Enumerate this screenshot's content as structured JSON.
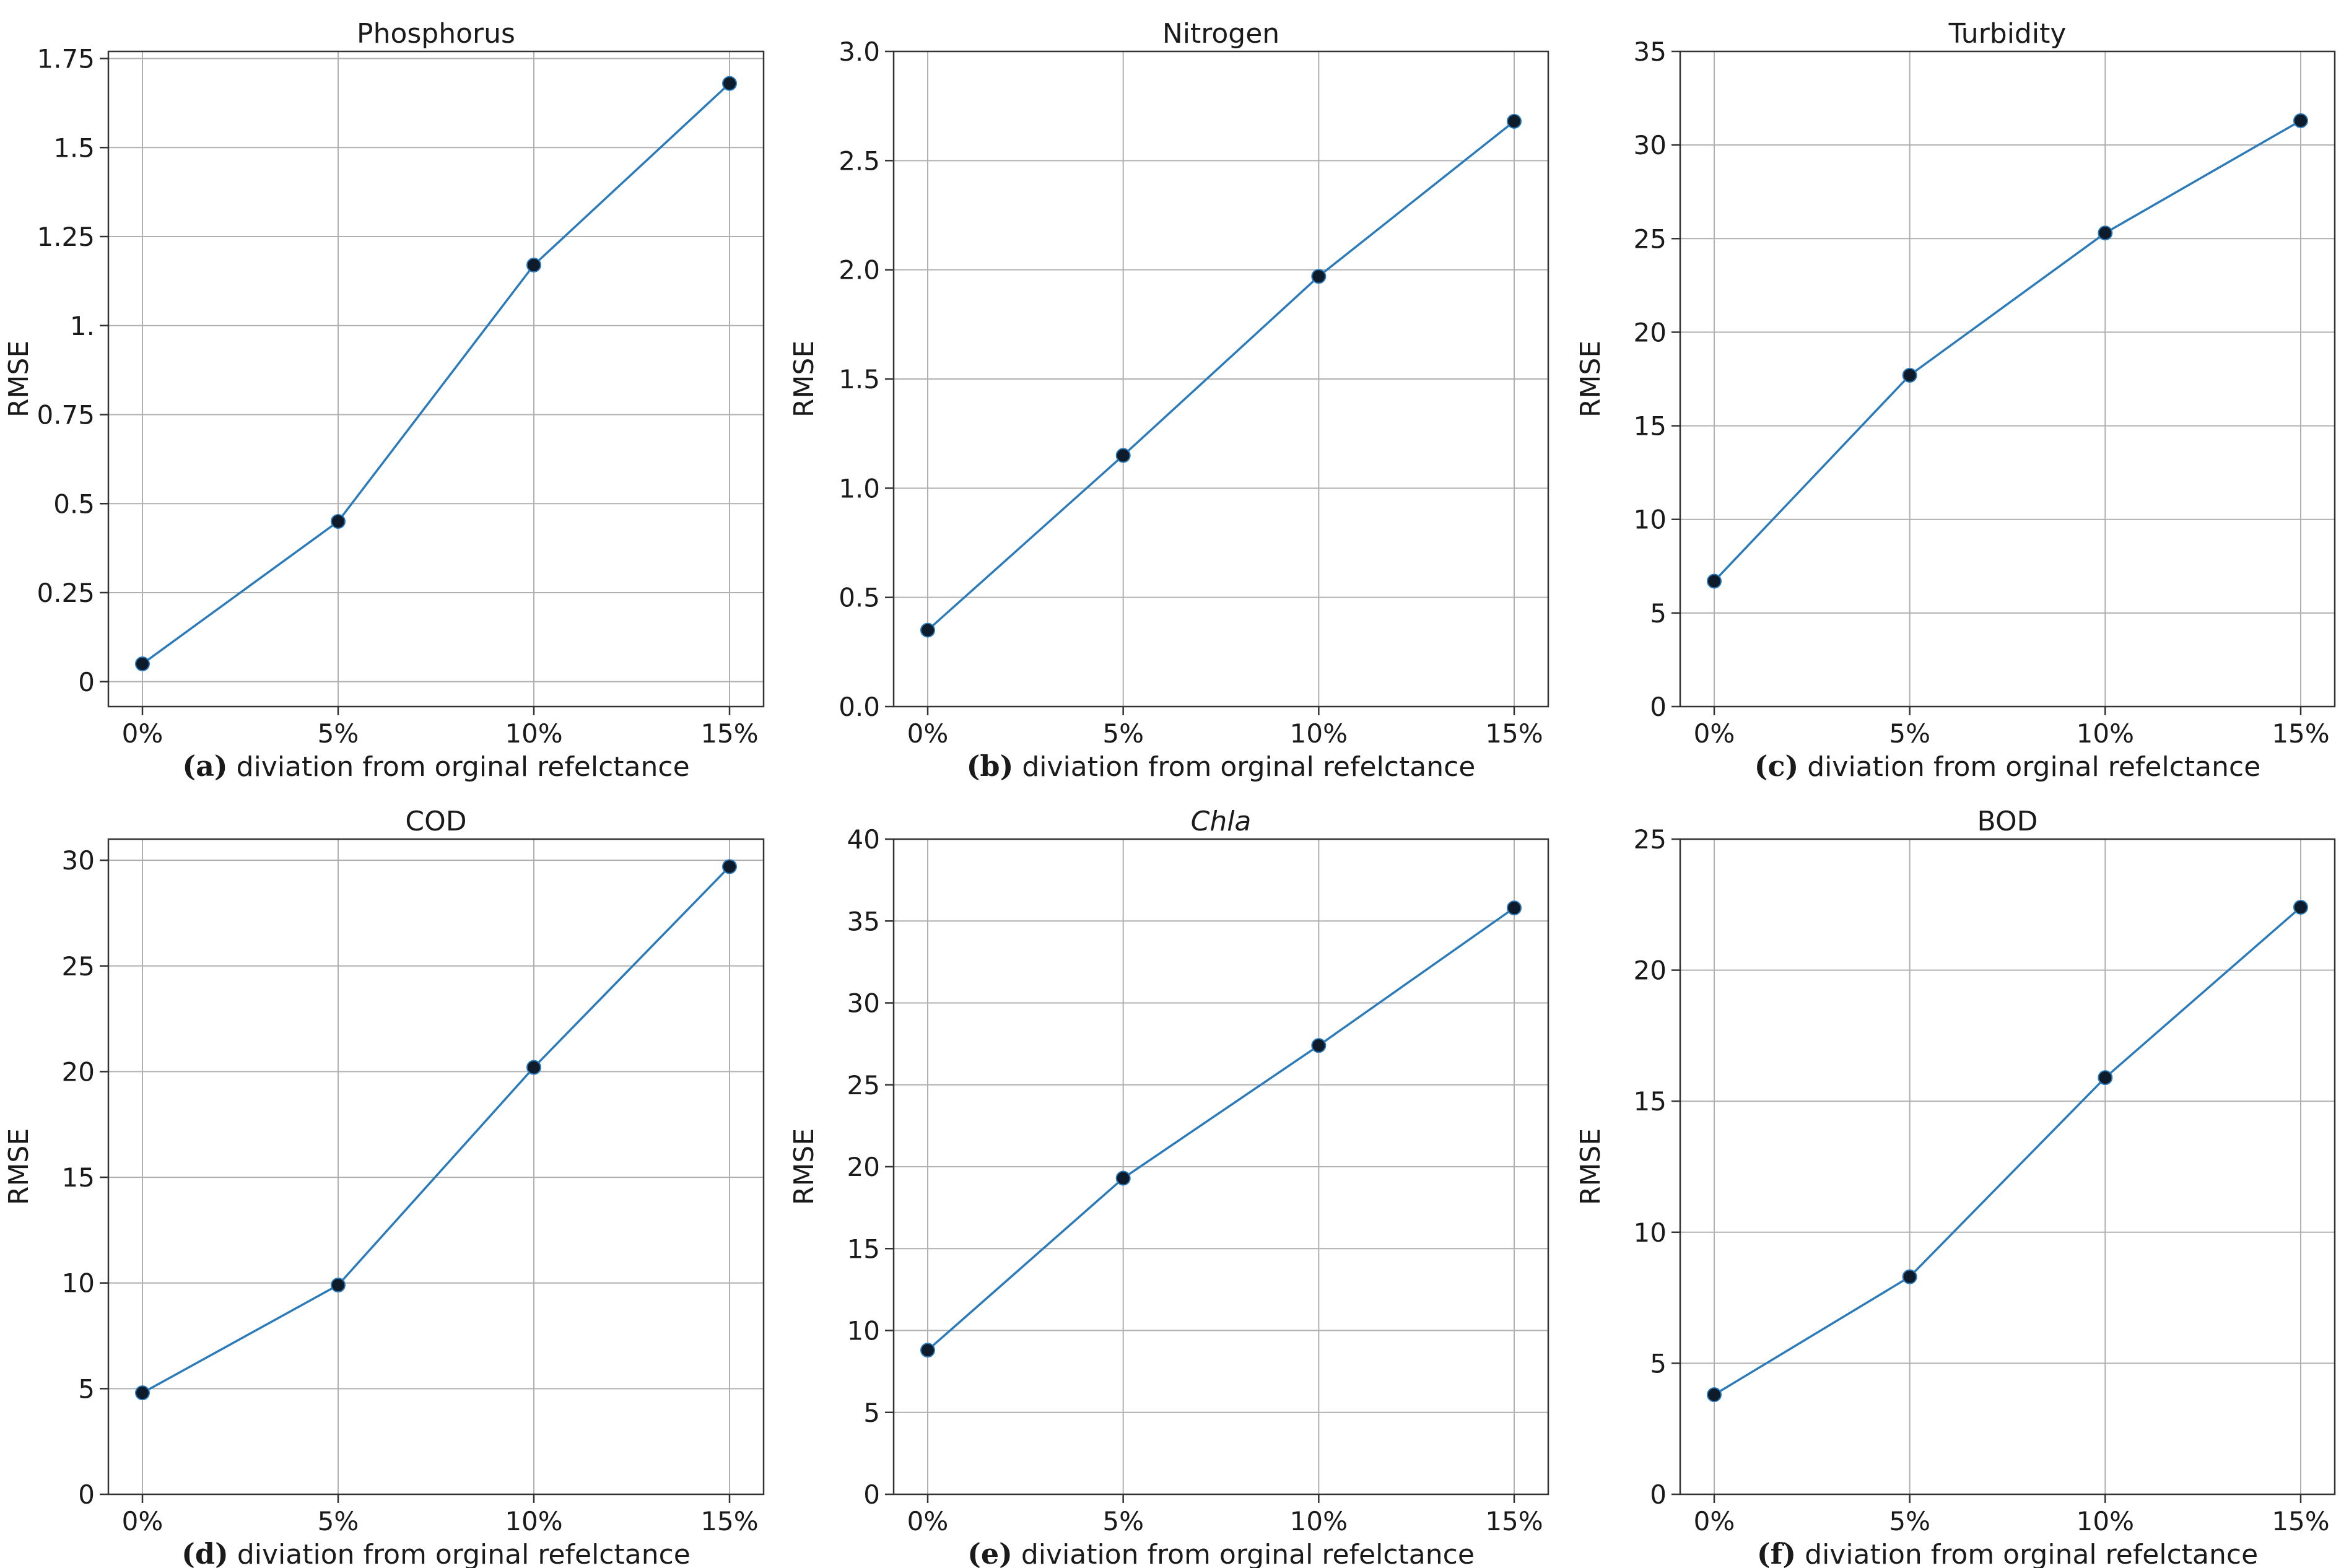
{
  "chart_data": [
    {
      "type": "line",
      "panel": "(a)",
      "title": "Phosphorus",
      "title_italic": false,
      "xlabel": "diviation from orginal refelctance",
      "ylabel": "RMSE",
      "categories": [
        "0%",
        "5%",
        "10%",
        "15%"
      ],
      "values": [
        0.05,
        0.45,
        1.17,
        1.68
      ],
      "ylim": [
        -0.07,
        1.77
      ],
      "yticks": [
        0,
        0.25,
        0.5,
        0.75,
        1.0,
        1.25,
        1.5,
        1.75
      ],
      "ytick_labels": [
        "0",
        "0.25",
        "0.5",
        "0.75",
        "1.",
        "1.25",
        "1.5",
        "1.75"
      ],
      "grid": true
    },
    {
      "type": "line",
      "panel": "(b)",
      "title": "Nitrogen",
      "title_italic": false,
      "xlabel": "diviation from orginal refelctance",
      "ylabel": "RMSE",
      "categories": [
        "0%",
        "5%",
        "10%",
        "15%"
      ],
      "values": [
        0.35,
        1.15,
        1.97,
        2.68
      ],
      "ylim": [
        0,
        3.0
      ],
      "yticks": [
        0,
        0.5,
        1.0,
        1.5,
        2.0,
        2.5,
        3.0
      ],
      "ytick_labels": [
        "0.0",
        "0.5",
        "1.0",
        "1.5",
        "2.0",
        "2.5",
        "3.0"
      ],
      "grid": true
    },
    {
      "type": "line",
      "panel": "(c)",
      "title": "Turbidity",
      "title_italic": false,
      "xlabel": "diviation from orginal refelctance",
      "ylabel": "RMSE",
      "categories": [
        "0%",
        "5%",
        "10%",
        "15%"
      ],
      "values": [
        6.7,
        17.7,
        25.3,
        31.3
      ],
      "ylim": [
        0,
        35
      ],
      "yticks": [
        0,
        5,
        10,
        15,
        20,
        25,
        30,
        35
      ],
      "ytick_labels": [
        "0",
        "5",
        "10",
        "15",
        "20",
        "25",
        "30",
        "35"
      ],
      "grid": true
    },
    {
      "type": "line",
      "panel": "(d)",
      "title": "COD",
      "title_italic": false,
      "xlabel": "diviation from orginal refelctance",
      "ylabel": "RMSE",
      "categories": [
        "0%",
        "5%",
        "10%",
        "15%"
      ],
      "values": [
        4.8,
        9.9,
        20.2,
        29.7
      ],
      "ylim": [
        0,
        31
      ],
      "yticks": [
        0,
        5,
        10,
        15,
        20,
        25,
        30
      ],
      "ytick_labels": [
        "0",
        "5",
        "10",
        "15",
        "20",
        "25",
        "30"
      ],
      "grid": true
    },
    {
      "type": "line",
      "panel": "(e)",
      "title": "Chla",
      "title_italic": true,
      "xlabel": "diviation from orginal refelctance",
      "ylabel": "RMSE",
      "categories": [
        "0%",
        "5%",
        "10%",
        "15%"
      ],
      "values": [
        8.8,
        19.3,
        27.4,
        35.8
      ],
      "ylim": [
        0,
        40
      ],
      "yticks": [
        0,
        5,
        10,
        15,
        20,
        25,
        30,
        35,
        40
      ],
      "ytick_labels": [
        "0",
        "5",
        "10",
        "15",
        "20",
        "25",
        "30",
        "35",
        "40"
      ],
      "grid": true
    },
    {
      "type": "line",
      "panel": "(f)",
      "title": "BOD",
      "title_italic": false,
      "xlabel": "diviation from orginal refelctance",
      "ylabel": "RMSE",
      "categories": [
        "0%",
        "5%",
        "10%",
        "15%"
      ],
      "values": [
        3.8,
        8.3,
        15.9,
        22.4
      ],
      "ylim": [
        0,
        25
      ],
      "yticks": [
        0,
        5,
        10,
        15,
        20,
        25
      ],
      "ytick_labels": [
        "0",
        "5",
        "10",
        "15",
        "20",
        "25"
      ],
      "grid": true
    }
  ],
  "colors": {
    "line": "#2b7bba",
    "marker": "#0d1b2a",
    "grid": "#b0b0b0",
    "axes": "#333333"
  }
}
